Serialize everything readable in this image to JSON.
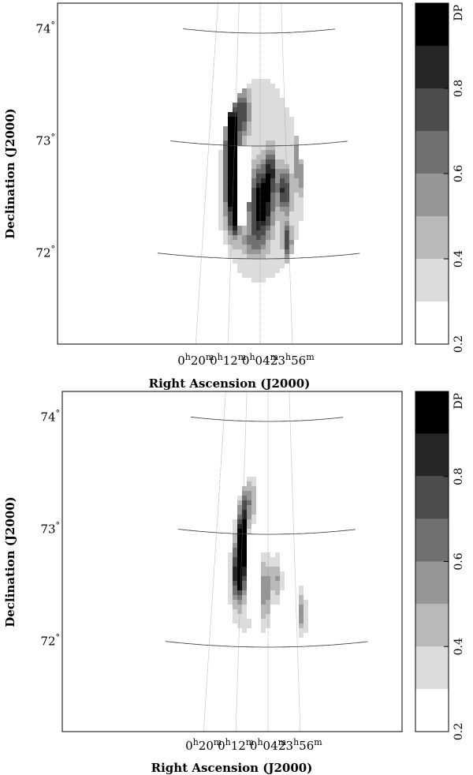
{
  "colors": {
    "levels": [
      "#ffffff",
      "#dcdcdc",
      "#b9b9b9",
      "#969696",
      "#707070",
      "#4c4c4c",
      "#262626",
      "#000000"
    ],
    "graticule": "#888888",
    "frame": "#000000"
  },
  "chart_data": [
    {
      "type": "heatmap",
      "panel": "top",
      "xlabel": "Right Ascension (J2000)",
      "ylabel": "Declination (J2000)",
      "x_ticks": [
        {
          "h": "0",
          "m": "20",
          "ra_deg": 5.0
        },
        {
          "h": "0",
          "m": "12",
          "ra_deg": 3.0
        },
        {
          "h": "0",
          "m": "04",
          "ra_deg": 1.0
        },
        {
          "h": "23",
          "m": "56",
          "ra_deg": 359.0
        }
      ],
      "y_ticks": [
        {
          "label": "74",
          "unit": "°",
          "dec": 74
        },
        {
          "label": "73",
          "unit": "°",
          "dec": 73
        },
        {
          "label": "72",
          "unit": "°",
          "dec": 72
        }
      ],
      "colorbar": {
        "title": "DP",
        "ticks": [
          "0.2",
          "0.4",
          "0.6",
          "0.8"
        ],
        "range": [
          0.2,
          1.0
        ],
        "levels": [
          0.2,
          0.3,
          0.4,
          0.5,
          0.6,
          0.7,
          0.8,
          0.9,
          1.0
        ]
      },
      "blobs": [
        {
          "ra": 3.0,
          "dec": 72.7,
          "sra": 0.55,
          "sdec": 0.35,
          "amp": 1.0
        },
        {
          "ra": 3.3,
          "dec": 73.1,
          "sra": 0.4,
          "sdec": 0.3,
          "amp": 0.7
        },
        {
          "ra": 2.4,
          "dec": 73.3,
          "sra": 0.6,
          "sdec": 0.2,
          "amp": 0.5
        },
        {
          "ra": 0.9,
          "dec": 72.5,
          "sra": 0.8,
          "sdec": 0.3,
          "amp": 0.8
        },
        {
          "ra": 0.2,
          "dec": 72.8,
          "sra": 0.4,
          "sdec": 0.2,
          "amp": 0.45
        },
        {
          "ra": -0.8,
          "dec": 72.6,
          "sra": 0.5,
          "sdec": 0.2,
          "amp": 0.55
        },
        {
          "ra": -1.9,
          "dec": 72.8,
          "sra": 0.25,
          "sdec": 0.25,
          "amp": 0.4
        },
        {
          "ra": -0.9,
          "dec": 72.15,
          "sra": 0.3,
          "sdec": 0.15,
          "amp": 0.5
        },
        {
          "ra": 1.6,
          "dec": 72.15,
          "sra": 0.9,
          "sdec": 0.15,
          "amp": 0.25
        },
        {
          "ra": 2.8,
          "dec": 72.3,
          "sra": 0.3,
          "sdec": 0.12,
          "amp": 0.4
        },
        {
          "ra": 2.1,
          "dec": 72.55,
          "sra": 0.25,
          "sdec": 0.15,
          "amp": 0.8
        }
      ],
      "region": {
        "ra": 1.0,
        "dec": 72.7,
        "rra": 3.2,
        "rdec": 0.9
      },
      "mask": {
        "ra1": 1.8,
        "ra2": 2.6,
        "dec1": 72.3,
        "dec2": 73.0
      },
      "base": 0.3
    },
    {
      "type": "heatmap",
      "panel": "bottom",
      "xlabel": "Right Ascension (J2000)",
      "ylabel": "Declination (J2000)",
      "x_ticks": [
        {
          "h": "0",
          "m": "20",
          "ra_deg": 5.0
        },
        {
          "h": "0",
          "m": "12",
          "ra_deg": 3.0
        },
        {
          "h": "0",
          "m": "04",
          "ra_deg": 1.0
        },
        {
          "h": "23",
          "m": "56",
          "ra_deg": 359.0
        }
      ],
      "y_ticks": [
        {
          "label": "74",
          "unit": "°",
          "dec": 74
        },
        {
          "label": "73",
          "unit": "°",
          "dec": 73
        },
        {
          "label": "72",
          "unit": "°",
          "dec": 72
        }
      ],
      "colorbar": {
        "title": "DP",
        "ticks": [
          "0.2",
          "0.4",
          "0.6",
          "0.8"
        ],
        "range": [
          0.2,
          1.0
        ],
        "levels": [
          0.2,
          0.3,
          0.4,
          0.5,
          0.6,
          0.7,
          0.8,
          0.9,
          1.0
        ]
      },
      "blobs": [
        {
          "ra": 3.1,
          "dec": 72.7,
          "sra": 0.5,
          "sdec": 0.3,
          "amp": 1.0
        },
        {
          "ra": 3.0,
          "dec": 73.1,
          "sra": 0.35,
          "sdec": 0.25,
          "amp": 0.6
        },
        {
          "ra": 2.4,
          "dec": 73.3,
          "sra": 0.5,
          "sdec": 0.2,
          "amp": 0.35
        },
        {
          "ra": 1.2,
          "dec": 72.5,
          "sra": 0.35,
          "sdec": 0.3,
          "amp": 0.4
        },
        {
          "ra": 0.4,
          "dec": 72.6,
          "sra": 0.4,
          "sdec": 0.2,
          "amp": 0.3
        },
        {
          "ra": -1.4,
          "dec": 72.3,
          "sra": 0.3,
          "sdec": 0.2,
          "amp": 0.35
        },
        {
          "ra": 2.5,
          "dec": 72.2,
          "sra": 0.6,
          "sdec": 0.1,
          "amp": 0.1
        }
      ],
      "region": {
        "ra": 0.8,
        "dec": 72.7,
        "rra": 3.4,
        "rdec": 0.95
      },
      "mask": {
        "ra1": 1.8,
        "ra2": 2.6,
        "dec1": 72.25,
        "dec2": 73.0
      },
      "base": 0.22
    }
  ]
}
